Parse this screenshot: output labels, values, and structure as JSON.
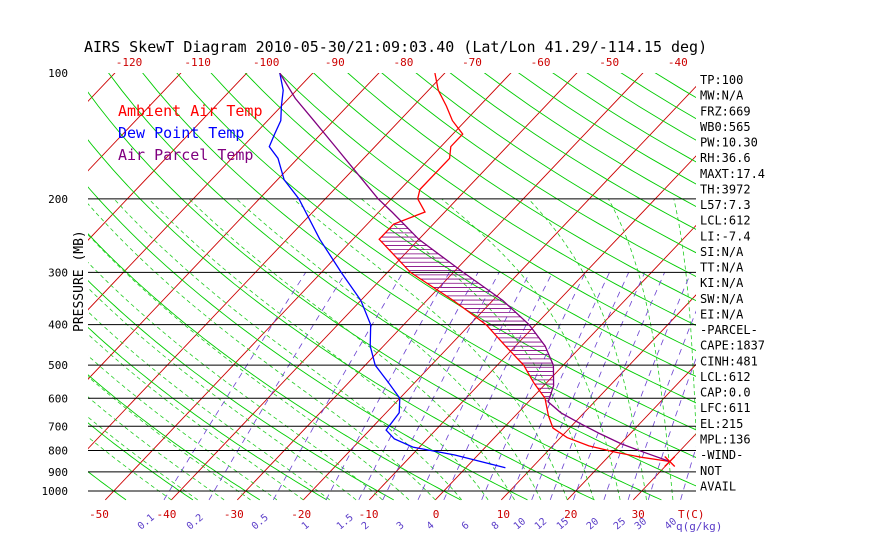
{
  "title": "AIRS SkewT Diagram 2010-05-30/21:09:03.40 (Lat/Lon 41.29/-114.15 deg)",
  "colors": {
    "ambient": "#ff0000",
    "dewpoint": "#0000ff",
    "parcel": "#800080",
    "dry_adiabat": "#00cc00",
    "moist_adiabat": "#22cc22",
    "isotherm": "#cc0000",
    "mixing_ratio": "#6a40d0",
    "top_ticks": "#cc0000",
    "pressure_lines": "#000000",
    "hatch": "#800080"
  },
  "legend": [
    {
      "label": "Ambient Air Temp",
      "color": "#ff0000"
    },
    {
      "label": "Dew Point Temp",
      "color": "#0000ff"
    },
    {
      "label": "Air Parcel Temp",
      "color": "#800080"
    }
  ],
  "axes": {
    "ylabel": "PRESSURE (MB)",
    "pressure_labels": [
      "100",
      "200",
      "300",
      "400",
      "500",
      "600",
      "700",
      "800",
      "900",
      "1000"
    ],
    "bottom_temp_labels": [
      "-50",
      "-40",
      "-30",
      "-20",
      "-10",
      "0",
      "10",
      "20",
      "30"
    ],
    "bottom_unit": "T(C)",
    "top_temp_labels": [
      "-120",
      "-110",
      "-100",
      "-90",
      "-80",
      "-70",
      "-60",
      "-50",
      "-40"
    ],
    "mixing_ratio_labels": [
      "0.1",
      "0.2",
      "0.5",
      "1",
      "1.5",
      "2",
      "3",
      "4",
      "6",
      "8",
      "10",
      "12",
      "15",
      "20",
      "25",
      "30",
      "40"
    ],
    "mixing_ratio_unit": "q(g/kg)"
  },
  "stats": [
    "TP:100",
    "MW:N/A",
    "FRZ:669",
    "WB0:565",
    "PW:10.30",
    "RH:36.6",
    "MAXT:17.4",
    "TH:3972",
    "L57:7.3",
    "LCL:612",
    "LI:-7.4",
    "SI:N/A",
    "TT:N/A",
    "KI:N/A",
    "SW:N/A",
    "EI:N/A",
    "-PARCEL-",
    "CAPE:1837",
    "CINH:481",
    "LCL:612",
    "CAP:0.0",
    "LFC:611",
    "EL:215",
    "MPL:136",
    "-WIND-",
    "NOT",
    "AVAIL"
  ],
  "chart_data": {
    "type": "skewt",
    "x_unit": "T(C)",
    "y_unit": "mb",
    "y_scale": "log",
    "pressure_range": [
      1000,
      100
    ],
    "series": [
      {
        "name": "Ambient Air Temp",
        "points": [
          {
            "p": 850,
            "t": 30.0
          },
          {
            "p": 830,
            "t": 25.0
          },
          {
            "p": 808,
            "t": 20.5
          },
          {
            "p": 780,
            "t": 15.5
          },
          {
            "p": 745,
            "t": 11.0
          },
          {
            "p": 707,
            "t": 7.5
          },
          {
            "p": 660,
            "t": 5.0
          },
          {
            "p": 600,
            "t": 2.0
          },
          {
            "p": 550,
            "t": -2.0
          },
          {
            "p": 500,
            "t": -6.0
          },
          {
            "p": 450,
            "t": -11.5
          },
          {
            "p": 400,
            "t": -17.5
          },
          {
            "p": 350,
            "t": -26.0
          },
          {
            "p": 300,
            "t": -36.5
          },
          {
            "p": 250,
            "t": -46.0
          },
          {
            "p": 230,
            "t": -46.0
          },
          {
            "p": 215,
            "t": -43.0
          },
          {
            "p": 200,
            "t": -46.0
          },
          {
            "p": 190,
            "t": -47.0
          },
          {
            "p": 175,
            "t": -47.0
          },
          {
            "p": 160,
            "t": -47.0
          },
          {
            "p": 150,
            "t": -48.5
          },
          {
            "p": 140,
            "t": -48.5
          },
          {
            "p": 130,
            "t": -52.0
          },
          {
            "p": 120,
            "t": -55.0
          },
          {
            "p": 110,
            "t": -58.5
          },
          {
            "p": 100,
            "t": -61.5
          }
        ]
      },
      {
        "name": "Dew Point Temp",
        "points": [
          {
            "p": 880,
            "t": 6.0
          },
          {
            "p": 820,
            "t": -3.5
          },
          {
            "p": 785,
            "t": -11.0
          },
          {
            "p": 750,
            "t": -15.0
          },
          {
            "p": 715,
            "t": -17.5
          },
          {
            "p": 650,
            "t": -18.0
          },
          {
            "p": 600,
            "t": -20.0
          },
          {
            "p": 550,
            "t": -24.0
          },
          {
            "p": 500,
            "t": -28.5
          },
          {
            "p": 450,
            "t": -32.0
          },
          {
            "p": 400,
            "t": -35.0
          },
          {
            "p": 350,
            "t": -40.0
          },
          {
            "p": 300,
            "t": -47.0
          },
          {
            "p": 250,
            "t": -55.0
          },
          {
            "p": 200,
            "t": -64.0
          },
          {
            "p": 180,
            "t": -69.0
          },
          {
            "p": 160,
            "t": -73.0
          },
          {
            "p": 150,
            "t": -76.0
          },
          {
            "p": 140,
            "t": -77.0
          },
          {
            "p": 130,
            "t": -78.0
          },
          {
            "p": 120,
            "t": -80.0
          },
          {
            "p": 110,
            "t": -82.0
          },
          {
            "p": 100,
            "t": -85.0
          }
        ]
      },
      {
        "name": "Air Parcel Temp",
        "points": [
          {
            "p": 850,
            "t": 30.0
          },
          {
            "p": 810,
            "t": 25.0
          },
          {
            "p": 770,
            "t": 20.0
          },
          {
            "p": 730,
            "t": 15.5
          },
          {
            "p": 690,
            "t": 11.0
          },
          {
            "p": 650,
            "t": 6.5
          },
          {
            "p": 612,
            "t": 3.0
          },
          {
            "p": 560,
            "t": 1.5
          },
          {
            "p": 500,
            "t": -1.5
          },
          {
            "p": 450,
            "t": -5.5
          },
          {
            "p": 400,
            "t": -11.0
          },
          {
            "p": 350,
            "t": -18.5
          },
          {
            "p": 300,
            "t": -28.5
          },
          {
            "p": 250,
            "t": -40.0
          },
          {
            "p": 215,
            "t": -48.0
          },
          {
            "p": 200,
            "t": -52.0
          },
          {
            "p": 175,
            "t": -58.5
          },
          {
            "p": 150,
            "t": -66.0
          },
          {
            "p": 130,
            "t": -73.0
          },
          {
            "p": 115,
            "t": -79.0
          },
          {
            "p": 100,
            "t": -85.0
          }
        ]
      }
    ],
    "cape_region": {
      "from_p": 612,
      "to_p": 215
    },
    "surface_marker": {
      "p": 850,
      "t": 30.0
    }
  }
}
